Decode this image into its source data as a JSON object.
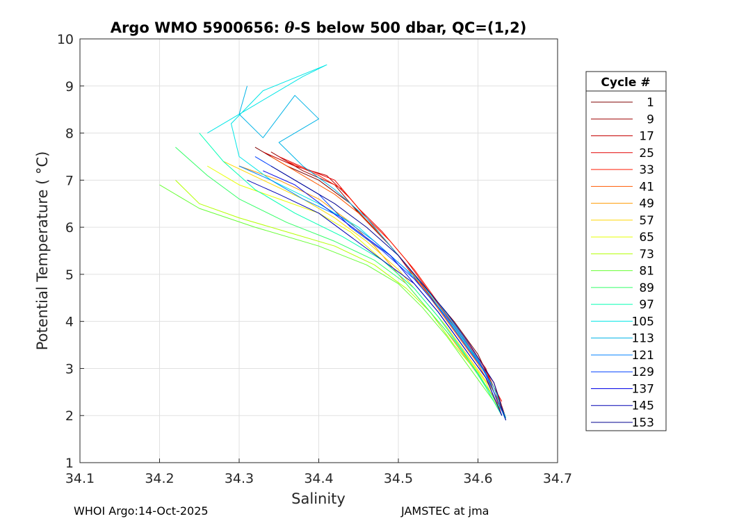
{
  "chart_data": {
    "type": "line",
    "title_prefix": "Argo WMO 5900656: ",
    "title_symbol": "θ",
    "title_suffix": "-S below 500 dbar,  QC=(1,2)",
    "xlabel": "Salinity",
    "ylabel": "Potential Temperature ( °C)",
    "xlim": [
      34.1,
      34.7
    ],
    "ylim": [
      1,
      10
    ],
    "xticks": [
      "34.1",
      "34.2",
      "34.3",
      "34.4",
      "34.5",
      "34.6",
      "34.7"
    ],
    "yticks": [
      "1",
      "2",
      "3",
      "4",
      "5",
      "6",
      "7",
      "8",
      "9",
      "10"
    ],
    "grid": true,
    "legend": {
      "title": "Cycle #",
      "placement": "right",
      "entries": [
        "1",
        "9",
        "17",
        "25",
        "33",
        "41",
        "49",
        "57",
        "65",
        "73",
        "81",
        "89",
        "97",
        "105",
        "113",
        "121",
        "129",
        "137",
        "145",
        "153"
      ],
      "colors": [
        "#7f0000",
        "#9d0000",
        "#c40000",
        "#e40000",
        "#ff1a00",
        "#ff5a00",
        "#ff9a00",
        "#ffd800",
        "#e8ff00",
        "#b3ff00",
        "#66ff33",
        "#33ff66",
        "#00ffb3",
        "#00e6e6",
        "#00b3e6",
        "#0080ff",
        "#0040ff",
        "#0000e6",
        "#0000b3",
        "#00008f"
      ]
    },
    "series": [
      {
        "name": "1",
        "points": [
          [
            34.32,
            7.7
          ],
          [
            34.36,
            7.3
          ],
          [
            34.4,
            7.0
          ],
          [
            34.44,
            6.5
          ],
          [
            34.48,
            5.8
          ],
          [
            34.51,
            5.2
          ],
          [
            34.54,
            4.6
          ],
          [
            34.57,
            4.0
          ],
          [
            34.6,
            3.3
          ],
          [
            34.62,
            2.6
          ],
          [
            34.635,
            1.9
          ]
        ]
      },
      {
        "name": "9",
        "points": [
          [
            34.34,
            7.6
          ],
          [
            34.38,
            7.2
          ],
          [
            34.42,
            6.9
          ],
          [
            34.45,
            6.3
          ],
          [
            34.49,
            5.6
          ],
          [
            34.52,
            5.0
          ],
          [
            34.55,
            4.3
          ],
          [
            34.58,
            3.6
          ],
          [
            34.61,
            2.9
          ],
          [
            34.63,
            2.1
          ]
        ]
      },
      {
        "name": "17",
        "points": [
          [
            34.33,
            7.6
          ],
          [
            34.37,
            7.3
          ],
          [
            34.41,
            7.1
          ],
          [
            34.44,
            6.6
          ],
          [
            34.47,
            6.0
          ],
          [
            34.5,
            5.4
          ],
          [
            34.53,
            4.7
          ],
          [
            34.56,
            4.1
          ],
          [
            34.59,
            3.4
          ],
          [
            34.62,
            2.7
          ],
          [
            34.635,
            1.95
          ]
        ]
      },
      {
        "name": "25",
        "points": [
          [
            34.35,
            7.5
          ],
          [
            34.39,
            7.2
          ],
          [
            34.42,
            7.0
          ],
          [
            34.45,
            6.4
          ],
          [
            34.48,
            5.9
          ],
          [
            34.51,
            5.3
          ],
          [
            34.54,
            4.6
          ],
          [
            34.57,
            3.9
          ],
          [
            34.6,
            3.2
          ],
          [
            34.63,
            2.3
          ]
        ]
      },
      {
        "name": "33",
        "points": [
          [
            34.36,
            7.4
          ],
          [
            34.4,
            7.1
          ],
          [
            34.43,
            6.8
          ],
          [
            34.46,
            6.2
          ],
          [
            34.49,
            5.7
          ],
          [
            34.52,
            5.1
          ],
          [
            34.55,
            4.4
          ],
          [
            34.58,
            3.7
          ],
          [
            34.61,
            3.0
          ],
          [
            34.63,
            2.0
          ]
        ]
      },
      {
        "name": "41",
        "points": [
          [
            34.34,
            7.5
          ],
          [
            34.38,
            7.1
          ],
          [
            34.42,
            6.7
          ],
          [
            34.45,
            6.3
          ],
          [
            34.48,
            5.8
          ],
          [
            34.51,
            5.2
          ],
          [
            34.54,
            4.5
          ],
          [
            34.57,
            3.8
          ],
          [
            34.6,
            3.1
          ],
          [
            34.63,
            2.2
          ]
        ]
      },
      {
        "name": "49",
        "points": [
          [
            34.3,
            7.3
          ],
          [
            34.35,
            7.0
          ],
          [
            34.4,
            6.6
          ],
          [
            34.44,
            6.1
          ],
          [
            34.47,
            5.6
          ],
          [
            34.5,
            5.0
          ],
          [
            34.53,
            4.4
          ],
          [
            34.56,
            3.8
          ],
          [
            34.59,
            3.1
          ],
          [
            34.62,
            2.4
          ]
        ]
      },
      {
        "name": "57",
        "points": [
          [
            34.28,
            7.4
          ],
          [
            34.33,
            7.0
          ],
          [
            34.38,
            6.6
          ],
          [
            34.42,
            6.2
          ],
          [
            34.46,
            5.7
          ],
          [
            34.5,
            5.1
          ],
          [
            34.53,
            4.5
          ],
          [
            34.56,
            3.9
          ],
          [
            34.59,
            3.2
          ],
          [
            34.62,
            2.5
          ]
        ]
      },
      {
        "name": "65",
        "points": [
          [
            34.26,
            7.3
          ],
          [
            34.3,
            6.9
          ],
          [
            34.35,
            6.6
          ],
          [
            34.4,
            6.3
          ],
          [
            34.44,
            5.9
          ],
          [
            34.48,
            5.3
          ],
          [
            34.52,
            4.7
          ],
          [
            34.55,
            4.1
          ],
          [
            34.58,
            3.4
          ],
          [
            34.61,
            2.7
          ],
          [
            34.63,
            2.0
          ]
        ]
      },
      {
        "name": "73",
        "points": [
          [
            34.22,
            7.0
          ],
          [
            34.25,
            6.5
          ],
          [
            34.3,
            6.2
          ],
          [
            34.36,
            5.9
          ],
          [
            34.42,
            5.6
          ],
          [
            34.47,
            5.2
          ],
          [
            34.51,
            4.7
          ],
          [
            34.54,
            4.2
          ],
          [
            34.57,
            3.5
          ],
          [
            34.6,
            2.9
          ],
          [
            34.63,
            2.0
          ]
        ]
      },
      {
        "name": "81",
        "points": [
          [
            34.2,
            6.9
          ],
          [
            34.25,
            6.4
          ],
          [
            34.32,
            6.0
          ],
          [
            34.4,
            5.6
          ],
          [
            34.46,
            5.2
          ],
          [
            34.5,
            4.8
          ],
          [
            34.53,
            4.3
          ],
          [
            34.56,
            3.7
          ],
          [
            34.59,
            3.0
          ],
          [
            34.62,
            2.3
          ]
        ]
      },
      {
        "name": "89",
        "points": [
          [
            34.22,
            7.7
          ],
          [
            34.26,
            7.1
          ],
          [
            34.3,
            6.6
          ],
          [
            34.36,
            6.1
          ],
          [
            34.42,
            5.7
          ],
          [
            34.47,
            5.3
          ],
          [
            34.51,
            4.8
          ],
          [
            34.54,
            4.2
          ],
          [
            34.57,
            3.6
          ],
          [
            34.6,
            2.9
          ],
          [
            34.63,
            2.1
          ]
        ]
      },
      {
        "name": "97",
        "points": [
          [
            34.25,
            8.0
          ],
          [
            34.28,
            7.4
          ],
          [
            34.32,
            6.8
          ],
          [
            34.37,
            6.3
          ],
          [
            34.43,
            5.8
          ],
          [
            34.48,
            5.3
          ],
          [
            34.52,
            4.7
          ],
          [
            34.55,
            4.1
          ],
          [
            34.58,
            3.4
          ],
          [
            34.61,
            2.6
          ],
          [
            34.63,
            2.0
          ]
        ]
      },
      {
        "name": "105",
        "points": [
          [
            34.26,
            8.0
          ],
          [
            34.32,
            8.6
          ],
          [
            34.38,
            9.2
          ],
          [
            34.41,
            9.45
          ],
          [
            34.33,
            8.9
          ],
          [
            34.29,
            8.2
          ],
          [
            34.3,
            7.5
          ],
          [
            34.34,
            7.0
          ],
          [
            34.4,
            6.5
          ],
          [
            34.45,
            6.0
          ],
          [
            34.49,
            5.4
          ],
          [
            34.53,
            4.8
          ],
          [
            34.56,
            4.1
          ],
          [
            34.59,
            3.4
          ],
          [
            34.62,
            2.6
          ],
          [
            34.635,
            1.95
          ]
        ]
      },
      {
        "name": "113",
        "points": [
          [
            34.31,
            9.0
          ],
          [
            34.3,
            8.4
          ],
          [
            34.33,
            7.9
          ],
          [
            34.37,
            8.8
          ],
          [
            34.4,
            8.3
          ],
          [
            34.35,
            7.8
          ],
          [
            34.38,
            7.3
          ],
          [
            34.42,
            6.8
          ],
          [
            34.46,
            6.2
          ],
          [
            34.49,
            5.6
          ],
          [
            34.52,
            5.0
          ],
          [
            34.55,
            4.4
          ],
          [
            34.58,
            3.7
          ],
          [
            34.61,
            2.9
          ],
          [
            34.63,
            2.1
          ]
        ]
      },
      {
        "name": "121",
        "points": [
          [
            34.3,
            7.3
          ],
          [
            34.34,
            7.0
          ],
          [
            34.38,
            6.6
          ],
          [
            34.43,
            6.2
          ],
          [
            34.47,
            5.7
          ],
          [
            34.51,
            5.1
          ],
          [
            34.54,
            4.5
          ],
          [
            34.57,
            3.9
          ],
          [
            34.6,
            3.2
          ],
          [
            34.62,
            2.5
          ],
          [
            34.635,
            1.9
          ]
        ]
      },
      {
        "name": "129",
        "points": [
          [
            34.32,
            7.5
          ],
          [
            34.36,
            7.1
          ],
          [
            34.4,
            6.7
          ],
          [
            34.44,
            6.0
          ],
          [
            34.48,
            5.5
          ],
          [
            34.52,
            4.9
          ],
          [
            34.55,
            4.3
          ],
          [
            34.58,
            3.6
          ],
          [
            34.61,
            2.9
          ],
          [
            34.63,
            2.1
          ]
        ]
      },
      {
        "name": "137",
        "points": [
          [
            34.33,
            7.2
          ],
          [
            34.37,
            6.9
          ],
          [
            34.41,
            6.4
          ],
          [
            34.45,
            5.9
          ],
          [
            34.49,
            5.4
          ],
          [
            34.52,
            4.8
          ],
          [
            34.55,
            4.2
          ],
          [
            34.58,
            3.5
          ],
          [
            34.61,
            2.8
          ],
          [
            34.63,
            2.0
          ]
        ]
      },
      {
        "name": "145",
        "points": [
          [
            34.31,
            7.0
          ],
          [
            34.35,
            6.7
          ],
          [
            34.4,
            6.3
          ],
          [
            34.44,
            5.8
          ],
          [
            34.48,
            5.3
          ],
          [
            34.52,
            4.8
          ],
          [
            34.55,
            4.2
          ],
          [
            34.58,
            3.5
          ],
          [
            34.61,
            2.8
          ],
          [
            34.63,
            2.0
          ]
        ]
      },
      {
        "name": "153",
        "points": [
          [
            34.34,
            7.3
          ],
          [
            34.38,
            6.9
          ],
          [
            34.42,
            6.5
          ],
          [
            34.46,
            6.0
          ],
          [
            34.5,
            5.4
          ],
          [
            34.53,
            4.8
          ],
          [
            34.56,
            4.2
          ],
          [
            34.59,
            3.5
          ],
          [
            34.62,
            2.7
          ],
          [
            34.635,
            1.9
          ]
        ]
      }
    ]
  },
  "footer": {
    "left": "WHOI Argo:14-Oct-2025",
    "right": "JAMSTEC at jma"
  }
}
